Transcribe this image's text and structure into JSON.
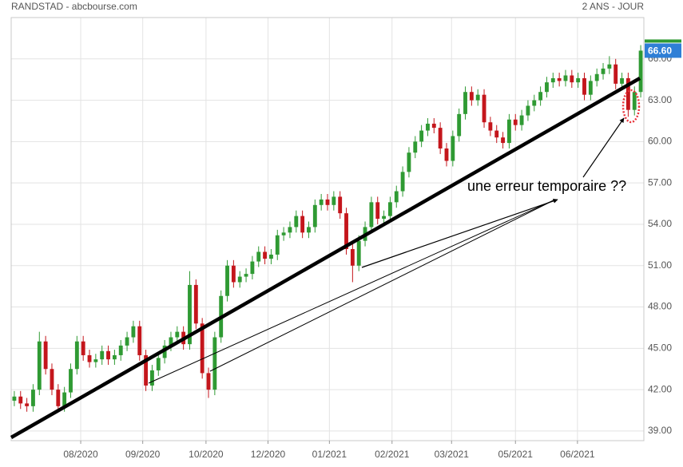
{
  "chart_data": {
    "type": "candlestick",
    "title": "RANDSTAD - abcbourse.com",
    "subtitle": "2 ANS - JOUR",
    "annotation": "une erreur temporaire ??",
    "up_color": "#2f9a33",
    "down_color": "#c4161c",
    "grid": true,
    "xlim": [
      -0.5,
      100.5
    ],
    "xticks": [
      {
        "value": 10.6,
        "label": "08/2020"
      },
      {
        "value": 20.5,
        "label": "09/2020"
      },
      {
        "value": 30.6,
        "label": "10/2020"
      },
      {
        "value": 40.5,
        "label": "12/2020"
      },
      {
        "value": 50.3,
        "label": "01/2021"
      },
      {
        "value": 60.3,
        "label": "02/2021"
      },
      {
        "value": 69.8,
        "label": "03/2021"
      },
      {
        "value": 80.0,
        "label": "05/2021"
      },
      {
        "value": 89.9,
        "label": "06/2021"
      }
    ],
    "ylim": [
      38.3,
      69.0
    ],
    "yticks": [
      {
        "value": 39,
        "label": "39.00"
      },
      {
        "value": 42,
        "label": "42.00"
      },
      {
        "value": 45,
        "label": "45.00"
      },
      {
        "value": 48,
        "label": "48.00"
      },
      {
        "value": 51,
        "label": "51.00"
      },
      {
        "value": 54,
        "label": "54.00"
      },
      {
        "value": 57,
        "label": "57.00"
      },
      {
        "value": 60,
        "label": "60.00"
      },
      {
        "value": 63,
        "label": "63.00"
      },
      {
        "value": 66,
        "label": "66.00"
      }
    ],
    "last_price": {
      "value": 66.6,
      "label": "66.60"
    },
    "open": [
      41.2,
      41.5,
      41,
      40.8,
      42,
      45.5,
      43.5,
      42,
      40.8,
      41.8,
      43.5,
      45.5,
      44.5,
      44,
      44.2,
      44.8,
      44.2,
      44.5,
      45.2,
      45.8,
      46.6,
      44.5,
      42.3,
      43.4,
      44.3,
      45.2,
      45.8,
      46.2,
      45.3,
      49.6,
      46.8,
      43.2,
      42,
      45.8,
      48.8,
      51,
      49.8,
      50.2,
      50.4,
      51.3,
      52,
      51.5,
      51.8,
      53.2,
      53.4,
      53.8,
      54.6,
      53.4,
      53.8,
      55.4,
      55.8,
      55.4,
      56,
      54.8,
      52.2,
      51,
      52.8,
      53.8,
      55.6,
      54.4,
      54.6,
      55.6,
      56.4,
      57.8,
      59.2,
      60,
      60.8,
      61.3,
      61,
      59.5,
      58.6,
      60.4,
      62,
      63.6,
      63,
      63.4,
      61.4,
      60.8,
      60.3,
      59.9,
      61.6,
      61.2,
      61.9,
      62.6,
      63,
      63.6,
      64.3,
      64.6,
      64.4,
      64.8,
      64.3,
      64.6,
      63.4,
      64.4,
      64.9,
      65.3,
      65.6,
      64.2,
      64.6,
      62.3,
      63.6
    ],
    "high": [
      41.9,
      41.9,
      41.4,
      42.4,
      46.2,
      45.9,
      43.9,
      42.4,
      42.2,
      43.9,
      45.9,
      45.9,
      44.9,
      44.6,
      45.2,
      45.2,
      44.9,
      45.6,
      46.2,
      47,
      47,
      44.9,
      43.8,
      44.7,
      45.6,
      46.2,
      46.6,
      46.6,
      50.6,
      50,
      47.2,
      43.6,
      46.2,
      49.2,
      51.4,
      51.4,
      50.6,
      50.8,
      51.7,
      52.4,
      52.4,
      52.2,
      53.6,
      53.8,
      54.2,
      55,
      55,
      54.2,
      55.8,
      56.2,
      56.2,
      56.4,
      56.4,
      55.2,
      52.6,
      53.2,
      54.2,
      56,
      56,
      55,
      56,
      56.8,
      58.2,
      59.6,
      60.4,
      61.2,
      61.7,
      61.7,
      61.4,
      59.9,
      60.8,
      62.4,
      64,
      64,
      63.8,
      63.8,
      61.8,
      61.2,
      60.7,
      62,
      62,
      62.3,
      63,
      63.4,
      64,
      64.7,
      65,
      65,
      65.2,
      65.2,
      65,
      65,
      64.8,
      65.3,
      65.7,
      66.2,
      66,
      65,
      65,
      64,
      67
    ],
    "low": [
      40.8,
      40.6,
      40.4,
      40.4,
      41.6,
      43.1,
      41.6,
      40.4,
      40.4,
      41.4,
      43.1,
      44.1,
      43.6,
      43.6,
      43.8,
      43.8,
      43.8,
      44.1,
      44.8,
      45.4,
      44.1,
      41.9,
      41.9,
      43,
      43.9,
      44.8,
      45.4,
      44.9,
      44.9,
      46.4,
      42.8,
      41.4,
      41.6,
      45.4,
      48.4,
      49.4,
      49.4,
      49.8,
      50,
      50.9,
      51.1,
      51.1,
      51.4,
      52.8,
      53,
      53.4,
      53,
      53,
      53.4,
      55,
      55,
      55,
      54.4,
      51.8,
      49.8,
      50.6,
      52.4,
      53.4,
      54,
      54,
      54.2,
      55.2,
      56,
      57.4,
      58.8,
      59.6,
      60.4,
      60.6,
      59.1,
      58.2,
      58.2,
      60,
      61.6,
      62.6,
      62.6,
      61,
      60.4,
      59.9,
      59.5,
      59.5,
      60.8,
      60.8,
      61.5,
      62.2,
      62.6,
      63.2,
      63.9,
      64,
      64,
      63.9,
      63.9,
      63,
      63,
      64,
      64.5,
      64.9,
      63.8,
      63.8,
      61.8,
      61.9,
      63.2
    ],
    "close": [
      41.5,
      41,
      40.8,
      42,
      45.5,
      43.5,
      42,
      40.8,
      41.8,
      43.5,
      45.5,
      44.5,
      44,
      44.2,
      44.8,
      44.2,
      44.5,
      45.2,
      45.8,
      46.6,
      44.5,
      42.3,
      43.4,
      44.3,
      45.2,
      45.8,
      46.2,
      45.3,
      49.6,
      46.8,
      43.2,
      42,
      45.8,
      48.8,
      51,
      49.8,
      50.2,
      50.4,
      51.3,
      52,
      51.5,
      51.8,
      53.2,
      53.4,
      53.8,
      54.6,
      53.4,
      53.8,
      55.4,
      55.8,
      55.4,
      56,
      54.8,
      52.2,
      51,
      52.8,
      53.8,
      55.6,
      54.4,
      54.6,
      55.6,
      56.4,
      57.8,
      59.2,
      60,
      60.8,
      61.3,
      61,
      59.5,
      58.6,
      60.4,
      62,
      63.6,
      63,
      63.4,
      61.4,
      60.8,
      60.3,
      59.9,
      61.6,
      61.2,
      61.9,
      62.6,
      63,
      63.6,
      64.3,
      64.6,
      64.4,
      64.8,
      64.3,
      64.6,
      63.4,
      64.4,
      64.9,
      65.3,
      65.6,
      64.2,
      64.6,
      62.3,
      63.6,
      66.6
    ]
  }
}
